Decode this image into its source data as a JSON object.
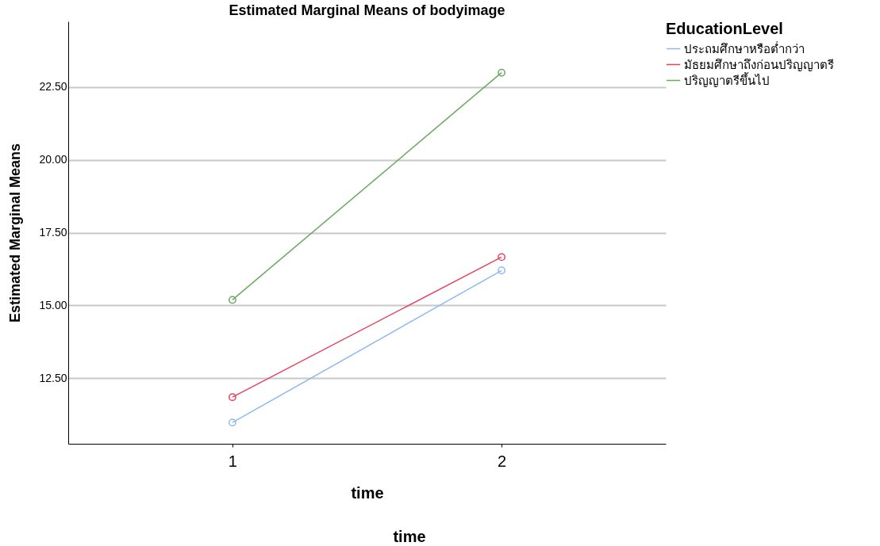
{
  "chart_data": {
    "type": "line",
    "title": "Estimated Marginal Means of bodyimage",
    "xlabel": "time",
    "ylabel": "Estimated Marginal Means",
    "legend_title": "EducationLevel",
    "annotations": [
      "time"
    ],
    "x": [
      1,
      2
    ],
    "xlim": [
      0.39,
      2.61
    ],
    "xticks": [
      1,
      2
    ],
    "series": [
      {
        "name": "ประถมศึกษาหรือต่ำกว่า",
        "color": "#8fb9ee",
        "values": [
          10.98,
          16.2
        ]
      },
      {
        "name": "มัธยมศึกษาถึงก่อนปริญญาตรี",
        "color": "#e8415f",
        "values": [
          11.85,
          16.66
        ]
      },
      {
        "name": "ปริญญาตรีขึ้นไป",
        "color": "#6aaa5e",
        "values": [
          15.19,
          22.99
        ]
      }
    ],
    "ylim": [
      10.25,
      24.75
    ],
    "yticks": [
      {
        "value": 12.5,
        "label": "12.50"
      },
      {
        "value": 15,
        "label": "15.00"
      },
      {
        "value": 17.5,
        "label": "17.50"
      },
      {
        "value": 20,
        "label": "20.00"
      },
      {
        "value": 22.5,
        "label": "22.50"
      }
    ],
    "grid": "y",
    "legend": "top right",
    "marker": "circle",
    "line_style": "solid"
  }
}
